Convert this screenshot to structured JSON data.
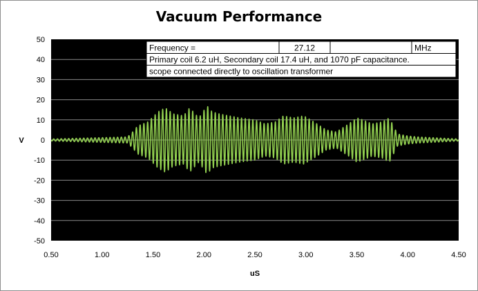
{
  "chart_data": {
    "type": "line",
    "title": "Vacuum Performance",
    "xlabel": "uS",
    "ylabel": "V",
    "xlim": [
      0.5,
      4.5
    ],
    "ylim": [
      -50,
      50
    ],
    "x_ticks": [
      "0.50",
      "1.00",
      "1.50",
      "2.00",
      "2.50",
      "3.00",
      "3.50",
      "4.00",
      "4.50"
    ],
    "y_ticks": [
      "50",
      "40",
      "30",
      "20",
      "10",
      "0",
      "-10",
      "-20",
      "-30",
      "-40",
      "-50"
    ],
    "grid": "horizontal",
    "background": "#000000",
    "line_color": "#92d050",
    "series": [
      {
        "carrier_frequency_mhz": 27.12,
        "x": [
          0.5,
          1.25,
          1.3,
          1.35,
          1.45,
          1.55,
          1.62,
          1.7,
          1.8,
          1.86,
          1.95,
          2.03,
          2.08,
          2.15,
          2.25,
          2.35,
          2.5,
          2.6,
          2.7,
          2.78,
          2.88,
          2.98,
          3.08,
          3.2,
          3.3,
          3.42,
          3.5,
          3.56,
          3.65,
          3.75,
          3.82,
          3.9,
          4.0,
          4.1,
          4.3,
          4.5
        ],
        "amplitude": [
          0.5,
          1.5,
          4,
          7,
          9,
          14,
          16,
          13,
          12,
          16,
          11,
          17,
          14,
          13,
          12,
          11,
          10,
          8,
          9,
          12,
          11,
          12,
          9,
          5,
          4,
          8,
          11,
          10,
          8,
          9,
          11,
          3,
          2,
          1.5,
          1,
          0.5
        ]
      }
    ]
  },
  "info_table": {
    "row1": {
      "label": "Frequency =",
      "value": "27.12",
      "unit": "MHz"
    },
    "row2": "Primary coil 6.2 uH, Secondary coil 17.4 uH, and 1070 pF capacitance.",
    "row3": "scope connected directly to oscillation transformer"
  }
}
